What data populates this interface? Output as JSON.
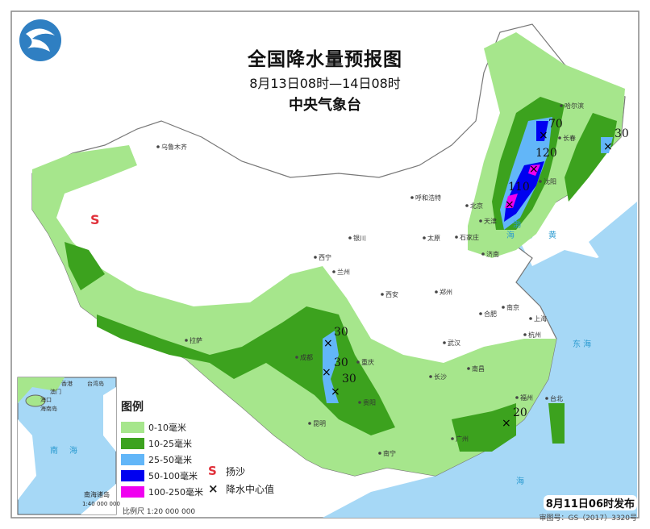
{
  "header": {
    "title": "全国降水量预报图",
    "period": "8月13日08时—14日08时",
    "issuer": "中央气象台"
  },
  "legend": {
    "title": "图例",
    "items": [
      {
        "label": "0-10毫米",
        "color": "#a6e68c"
      },
      {
        "label": "10-25毫米",
        "color": "#3ca21e"
      },
      {
        "label": "25-50毫米",
        "color": "#62b6f8"
      },
      {
        "label": "50-100毫米",
        "color": "#0000f0"
      },
      {
        "label": "100-250毫米",
        "color": "#f000f0"
      }
    ],
    "symbols": [
      {
        "icon": "sand-dust-icon",
        "glyph": "S",
        "label": "扬沙"
      },
      {
        "icon": "precip-center-icon",
        "glyph": "×",
        "label": "降水中心值"
      }
    ],
    "scale": "比例尺   1:20 000 000"
  },
  "precip_centers": [
    {
      "value": "70",
      "region": "哈尔滨西南"
    },
    {
      "value": "120",
      "region": "沈阳北"
    },
    {
      "value": "110",
      "region": "辽宁西南"
    },
    {
      "value": "30",
      "region": "吉林东部"
    },
    {
      "value": "30",
      "region": "四川"
    },
    {
      "value": "30",
      "region": "四川南"
    },
    {
      "value": "30",
      "region": "云南北"
    },
    {
      "value": "20",
      "region": "福建"
    }
  ],
  "cities": [
    "乌鲁木齐",
    "哈尔滨",
    "长春",
    "沈阳",
    "呼和浩特",
    "北京",
    "天津",
    "石家庄",
    "太原",
    "济南",
    "银川",
    "西宁",
    "兰州",
    "西安",
    "郑州",
    "合肥",
    "南京",
    "上海",
    "武汉",
    "杭州",
    "成都",
    "重庆",
    "长沙",
    "南昌",
    "福州",
    "台北",
    "拉萨",
    "贵阳",
    "昆明",
    "南宁",
    "广州"
  ],
  "seas": [
    "渤海",
    "黄海",
    "东海",
    "南海"
  ],
  "inset": {
    "labels": [
      "香港",
      "台湾岛",
      "澳门",
      "海口",
      "海南岛"
    ],
    "sea": "南海",
    "title": "南海诸岛",
    "scale": "1:40 000 000"
  },
  "footer": {
    "published": "8月11日06时发布",
    "review_no": "审图号：GS（2017）3320号"
  },
  "colors": {
    "ocean": "#a6d8f6",
    "land": "#ffffff",
    "sand": "#e0303a"
  }
}
